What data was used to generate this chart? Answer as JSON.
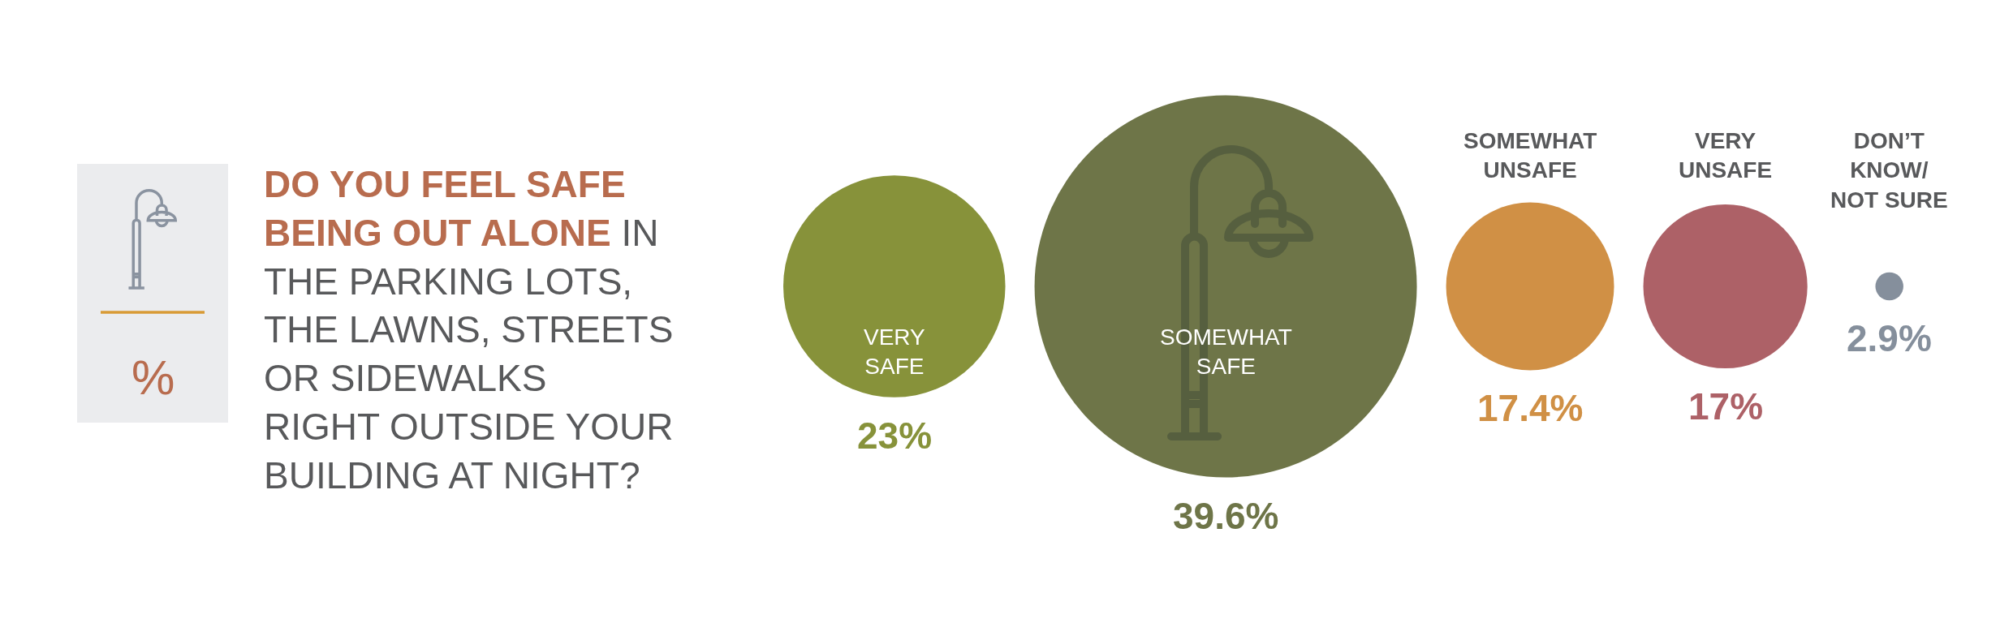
{
  "chart_data": {
    "type": "other",
    "title": "DO YOU FEEL SAFE BEING OUT ALONE",
    "subtitle": "IN THE PARKING LOTS, THE LAWNS, STREETS OR SIDEWALKS RIGHT OUTSIDE YOUR BUILDING AT NIGHT?",
    "annotations": [
      "%"
    ],
    "categories": [
      "VERY SAFE",
      "SOMEWHAT SAFE",
      "SOMEWHAT UNSAFE",
      "VERY UNSAFE",
      "DON’T KNOW/ NOT SURE"
    ],
    "values": [
      23,
      39.6,
      17.4,
      17,
      2.9
    ],
    "colors": [
      "#87923a",
      "#6e7548",
      "#d09045",
      "#ad6167",
      "#858f9c"
    ],
    "value_labels": [
      "23%",
      "39.6%",
      "17.4%",
      "17%",
      "2.9%"
    ]
  }
}
